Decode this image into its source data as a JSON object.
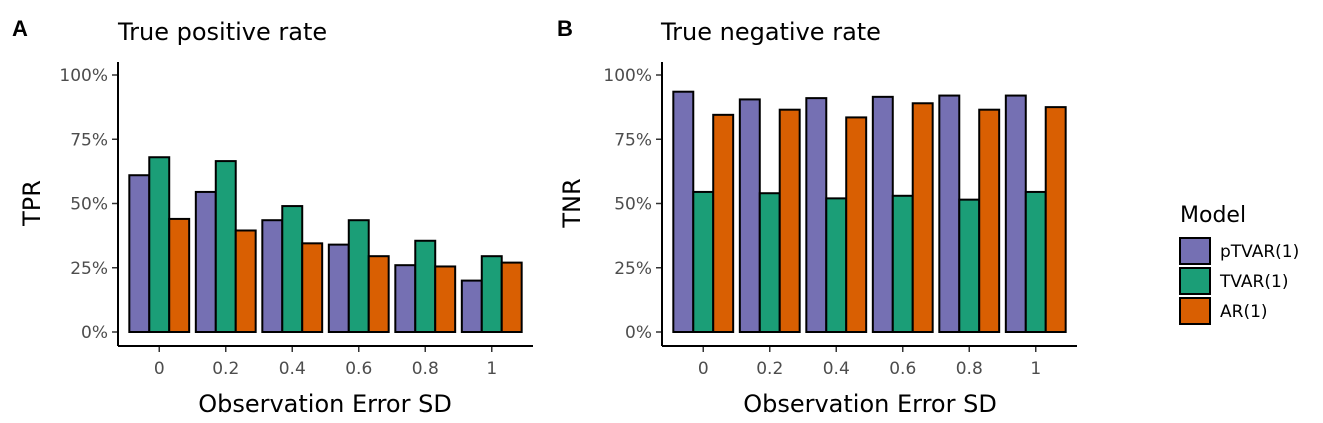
{
  "chart_data": [
    {
      "type": "bar",
      "panel_tag": "A",
      "title": "True positive rate",
      "xlabel": "Observation Error SD",
      "ylabel": "TPR",
      "categories": [
        "0",
        "0.2",
        "0.4",
        "0.6",
        "0.8",
        "1"
      ],
      "ylim": [
        0,
        1
      ],
      "yticks": [
        0,
        0.25,
        0.5,
        0.75,
        1.0
      ],
      "ytick_labels": [
        "0%",
        "25%",
        "50%",
        "75%",
        "100%"
      ],
      "grid": false,
      "series": [
        {
          "name": "pTVAR(1)",
          "color": "#7570b3",
          "values": [
            0.61,
            0.545,
            0.435,
            0.34,
            0.26,
            0.2
          ]
        },
        {
          "name": "TVAR(1)",
          "color": "#1b9e77",
          "values": [
            0.68,
            0.665,
            0.49,
            0.435,
            0.355,
            0.295
          ]
        },
        {
          "name": "AR(1)",
          "color": "#d95f02",
          "values": [
            0.44,
            0.395,
            0.345,
            0.295,
            0.255,
            0.27
          ]
        }
      ]
    },
    {
      "type": "bar",
      "panel_tag": "B",
      "title": "True negative rate",
      "xlabel": "Observation Error SD",
      "ylabel": "TNR",
      "categories": [
        "0",
        "0.2",
        "0.4",
        "0.6",
        "0.8",
        "1"
      ],
      "ylim": [
        0,
        1
      ],
      "yticks": [
        0,
        0.25,
        0.5,
        0.75,
        1.0
      ],
      "ytick_labels": [
        "0%",
        "25%",
        "50%",
        "75%",
        "100%"
      ],
      "grid": false,
      "series": [
        {
          "name": "pTVAR(1)",
          "color": "#7570b3",
          "values": [
            0.935,
            0.905,
            0.91,
            0.915,
            0.92,
            0.92
          ]
        },
        {
          "name": "TVAR(1)",
          "color": "#1b9e77",
          "values": [
            0.545,
            0.54,
            0.52,
            0.53,
            0.515,
            0.545
          ]
        },
        {
          "name": "AR(1)",
          "color": "#d95f02",
          "values": [
            0.845,
            0.865,
            0.835,
            0.89,
            0.865,
            0.875
          ]
        }
      ]
    }
  ],
  "legend": {
    "title": "Model",
    "placement": "right",
    "items": [
      {
        "label": "pTVAR(1)",
        "color": "#7570b3"
      },
      {
        "label": "TVAR(1)",
        "color": "#1b9e77"
      },
      {
        "label": "AR(1)",
        "color": "#d95f02"
      }
    ]
  }
}
